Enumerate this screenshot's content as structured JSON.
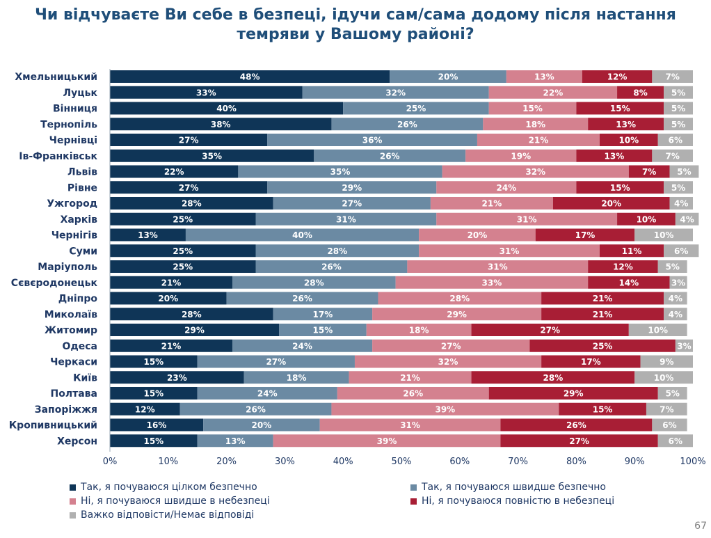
{
  "title_line1": "Чи відчуваєте Ви себе в безпеці, ідучи сам/сама додому після настання",
  "title_line2": "темряви у Вашому районі?",
  "page_number": "67",
  "chart_data": {
    "type": "bar",
    "orientation": "horizontal",
    "stacked": true,
    "categories": [
      "Хмельницький",
      "Луцьк",
      "Вінниця",
      "Тернопіль",
      "Чернівці",
      "Ів-Франківськ",
      "Львів",
      "Рівне",
      "Ужгород",
      "Харків",
      "Чернігів",
      "Суми",
      "Маріуполь",
      "Сєвєродонецьк",
      "Дніпро",
      "Миколаїв",
      "Житомир",
      "Одеса",
      "Черкаси",
      "Київ",
      "Полтава",
      "Запоріжжя",
      "Кропивницький",
      "Херсон"
    ],
    "series": [
      {
        "name": "Так, я почуваюся цілком безпечно",
        "color": "#0f3557",
        "values": [
          48,
          33,
          40,
          38,
          27,
          35,
          22,
          27,
          28,
          25,
          13,
          25,
          25,
          21,
          20,
          28,
          29,
          21,
          15,
          23,
          15,
          12,
          16,
          15
        ]
      },
      {
        "name": "Так, я почуваюся швидше безпечно",
        "color": "#6b8aa3",
        "values": [
          20,
          32,
          25,
          26,
          36,
          26,
          35,
          29,
          27,
          31,
          40,
          28,
          26,
          28,
          26,
          17,
          15,
          24,
          27,
          18,
          24,
          26,
          20,
          13
        ]
      },
      {
        "name": "Ні, я почуваюся швидше в небезпеці",
        "color": "#d4818f",
        "values": [
          13,
          22,
          15,
          18,
          21,
          19,
          32,
          24,
          21,
          31,
          20,
          31,
          31,
          33,
          28,
          29,
          18,
          27,
          32,
          21,
          26,
          39,
          31,
          39
        ]
      },
      {
        "name": "Ні, я почуваюся повністю в небезпеці",
        "color": "#a81e35",
        "values": [
          12,
          8,
          15,
          13,
          10,
          13,
          7,
          15,
          20,
          10,
          17,
          11,
          12,
          14,
          21,
          21,
          27,
          25,
          17,
          28,
          29,
          15,
          26,
          27
        ]
      },
      {
        "name": "Важко відповісти/Немає відповіді",
        "color": "#b0b0b0",
        "values": [
          7,
          5,
          5,
          5,
          6,
          7,
          5,
          5,
          4,
          4,
          10,
          6,
          5,
          3,
          4,
          4,
          10,
          3,
          9,
          10,
          5,
          7,
          6,
          6
        ]
      }
    ],
    "xlim": [
      0,
      100
    ],
    "xticks": [
      "0%",
      "10%",
      "20%",
      "30%",
      "40%",
      "50%",
      "60%",
      "70%",
      "80%",
      "90%",
      "100%"
    ],
    "value_suffix": "%",
    "grid": false,
    "legend_position": "bottom"
  }
}
